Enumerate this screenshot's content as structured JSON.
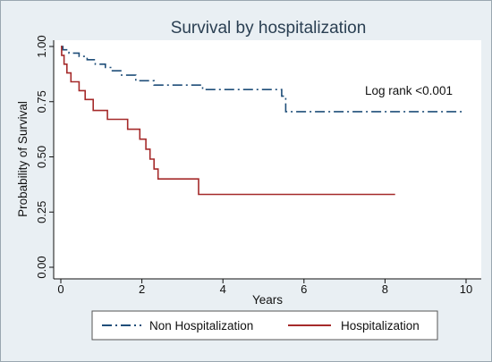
{
  "chart_data": {
    "type": "line",
    "title": "Survival by hospitalization",
    "xlabel": "Years",
    "ylabel": "Probability of Survival",
    "xlim": [
      0,
      10
    ],
    "ylim": [
      0,
      1
    ],
    "x_ticks": [
      0,
      2,
      4,
      6,
      8,
      10
    ],
    "y_ticks": [
      0.0,
      0.25,
      0.5,
      0.75,
      1.0
    ],
    "x_tick_labels": [
      "0",
      "2",
      "4",
      "6",
      "8",
      "10"
    ],
    "y_tick_labels": [
      "0.00",
      "0.25",
      "0.50",
      "0.75",
      "1.00"
    ],
    "grid": false,
    "legend_position": "bottom",
    "annotation": "Log rank <0.001",
    "series": [
      {
        "name": "Non Hospitalization",
        "color": "#1f4e79",
        "line_style": "dash-dot",
        "step": true,
        "x": [
          0,
          0.05,
          0.2,
          0.45,
          0.65,
          0.85,
          1.1,
          1.25,
          1.5,
          1.85,
          2.3,
          3.5,
          5.45,
          5.55,
          9.95
        ],
        "y": [
          1.0,
          0.985,
          0.97,
          0.955,
          0.94,
          0.92,
          0.905,
          0.89,
          0.87,
          0.845,
          0.825,
          0.805,
          0.775,
          0.705,
          0.705
        ]
      },
      {
        "name": "Hospitalization",
        "color": "#a52a2a",
        "line_style": "solid",
        "step": true,
        "x": [
          0,
          0.02,
          0.08,
          0.15,
          0.25,
          0.45,
          0.6,
          0.8,
          1.15,
          1.65,
          1.95,
          2.1,
          2.2,
          2.3,
          2.4,
          2.6,
          3.4,
          8.25
        ],
        "y": [
          1.0,
          0.96,
          0.92,
          0.88,
          0.84,
          0.8,
          0.76,
          0.71,
          0.67,
          0.625,
          0.58,
          0.535,
          0.49,
          0.445,
          0.4,
          0.4,
          0.33,
          0.33
        ]
      }
    ]
  }
}
